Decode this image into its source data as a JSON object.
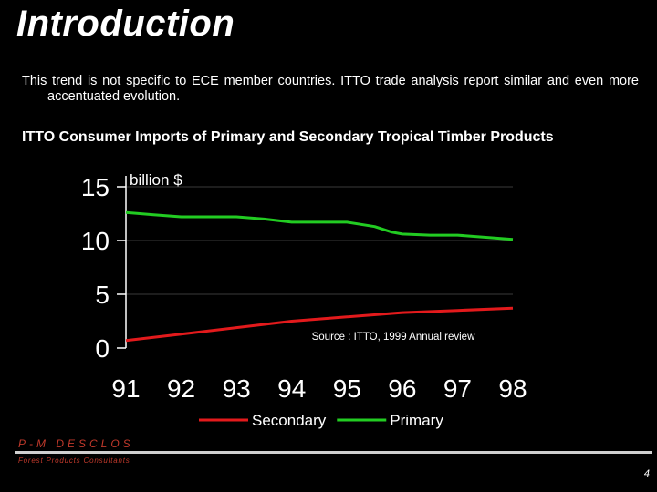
{
  "slide": {
    "title": "Introduction",
    "intro_text": "This trend is not specific to ECE member countries.  ITTO trade analysis report similar and even more accentuated evolution.",
    "chart_heading": "ITTO Consumer Imports of Primary and Secondary Tropical Timber Products",
    "footer_name": "P-M  DESCLOS",
    "footer_sub": "Forest Products Consultants",
    "page_number": "4"
  },
  "chart_data": {
    "type": "line",
    "ylabel": "billion $",
    "x": [
      91,
      92,
      93,
      94,
      95,
      96,
      97,
      98
    ],
    "x_tick_labels": [
      "91",
      "92",
      "93",
      "94",
      "95",
      "96",
      "97",
      "98"
    ],
    "y_tick_labels": [
      "0",
      "5",
      "10",
      "15"
    ],
    "y_ticks": [
      0,
      5,
      10,
      15
    ],
    "ylim": [
      0,
      15
    ],
    "xlim": [
      91,
      98
    ],
    "grid": true,
    "annotation": "Source : ITTO, 1999 Annual review",
    "legend_position": "bottom",
    "series": [
      {
        "name": "Secondary",
        "color": "#e31a1c",
        "x": [
          91,
          92,
          93,
          94,
          95,
          96,
          97,
          98
        ],
        "values": [
          0.7,
          1.3,
          1.9,
          2.5,
          2.9,
          3.3,
          3.5,
          3.7
        ]
      },
      {
        "name": "Primary",
        "color": "#22cc22",
        "x": [
          91,
          91.5,
          92,
          93,
          93.5,
          94,
          95,
          95.5,
          95.8,
          96,
          96.5,
          97,
          98
        ],
        "values": [
          12.6,
          12.4,
          12.2,
          12.2,
          12.0,
          11.7,
          11.7,
          11.3,
          10.8,
          10.6,
          10.5,
          10.5,
          10.1
        ]
      }
    ]
  }
}
